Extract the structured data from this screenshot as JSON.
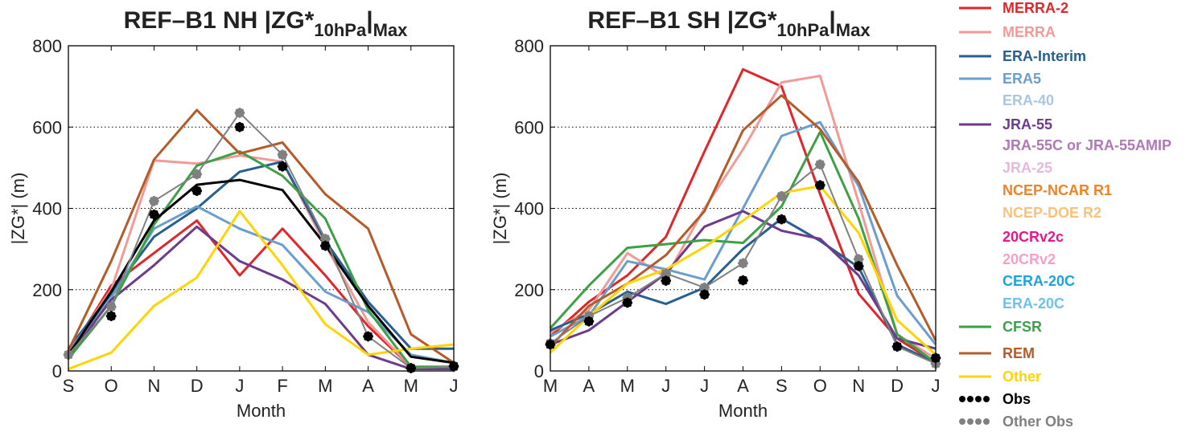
{
  "figure": {
    "colors": {
      "MERRA-2": "#e0262b",
      "MERRA": "#f29a96",
      "ERA-Interim": "#275f8f",
      "ERA5": "#6a9ecd",
      "ERA-40": "#a9c6e2",
      "JRA-55": "#6e3b8c",
      "JRA-55C or JRA-55AMIP": "#b177b6",
      "JRA-25": "#e6b8dc",
      "NCEP-NCAR R1": "#f28123",
      "NCEP-DOE R2": "#fbc07a",
      "20CRv2c": "#e3198d",
      "20CRv2": "#f4a0c8",
      "CERA-20C": "#1aa3dc",
      "ERA-20C": "#6bc4e6",
      "CFSR": "#3da046",
      "REM": "#b55b2a",
      "Other": "#ffd400",
      "Obs": "#000000",
      "Other Obs": "#808080"
    },
    "legend": {
      "entries": [
        {
          "label": "MERRA-2",
          "style": "line"
        },
        {
          "label": "MERRA",
          "style": "line"
        },
        {
          "label": "ERA-Interim",
          "style": "line"
        },
        {
          "label": "ERA5",
          "style": "line"
        },
        {
          "label": "ERA-40",
          "style": "text"
        },
        {
          "label": "JRA-55",
          "style": "line"
        },
        {
          "label": "JRA-55C or JRA-55AMIP",
          "style": "text"
        },
        {
          "label": "JRA-25",
          "style": "text"
        },
        {
          "label": "NCEP-NCAR R1",
          "style": "text"
        },
        {
          "label": "NCEP-DOE R2",
          "style": "text"
        },
        {
          "label": "20CRv2c",
          "style": "text"
        },
        {
          "label": "20CRv2",
          "style": "text"
        },
        {
          "label": "CERA-20C",
          "style": "text"
        },
        {
          "label": "ERA-20C",
          "style": "text"
        },
        {
          "label": "CFSR",
          "style": "line"
        },
        {
          "label": "REM",
          "style": "line"
        },
        {
          "label": "Other",
          "style": "line"
        },
        {
          "label": "Obs",
          "style": "dots"
        },
        {
          "label": "Other Obs",
          "style": "dots"
        }
      ]
    }
  },
  "chart_data": [
    {
      "type": "line",
      "title_main": "REF–B1 NH |ZG*",
      "title_sub": "10hPa",
      "title_bar": "|",
      "title_max": "Max",
      "xlabel": "Month",
      "ylabel": "|ZG*| (m)",
      "categories": [
        "S",
        "O",
        "N",
        "D",
        "J",
        "F",
        "M",
        "A",
        "M",
        "J"
      ],
      "ylim": [
        0,
        800
      ],
      "yticks": [
        0,
        200,
        400,
        600,
        800
      ],
      "grid": "dotted horizontal",
      "series": [
        {
          "name": "MERRA-2",
          "values": [
            40,
            210,
            290,
            370,
            235,
            350,
            235,
            110,
            10,
            10
          ]
        },
        {
          "name": "MERRA",
          "values": [
            45,
            200,
            518,
            510,
            530,
            515,
            310,
            120,
            10,
            10
          ]
        },
        {
          "name": "ERA-Interim",
          "values": [
            55,
            190,
            330,
            400,
            490,
            515,
            320,
            170,
            55,
            55
          ]
        },
        {
          "name": "ERA5",
          "values": [
            50,
            180,
            350,
            405,
            350,
            310,
            195,
            145,
            40,
            20
          ]
        },
        {
          "name": "JRA-55",
          "values": [
            35,
            175,
            260,
            355,
            270,
            225,
            165,
            40,
            5,
            5
          ]
        },
        {
          "name": "CFSR",
          "values": [
            30,
            160,
            360,
            505,
            540,
            480,
            375,
            150,
            10,
            10
          ]
        },
        {
          "name": "REM",
          "values": [
            50,
            270,
            520,
            642,
            535,
            562,
            435,
            350,
            90,
            20
          ]
        },
        {
          "name": "Other",
          "values": [
            5,
            45,
            160,
            230,
            393,
            260,
            115,
            40,
            55,
            65
          ]
        },
        {
          "name": "Obs",
          "values": [
            40,
            195,
            370,
            458,
            470,
            445,
            310,
            160,
            35,
            20
          ]
        }
      ],
      "obs_points": [
        {
          "x": "O",
          "y": 135
        },
        {
          "x": "N",
          "y": 385
        },
        {
          "x": "D",
          "y": 443
        },
        {
          "x": "J",
          "y": 600
        },
        {
          "x": "F",
          "y": 503
        },
        {
          "x": "M",
          "y": 308
        },
        {
          "x": "A",
          "y": 85
        },
        {
          "x": "M",
          "y": 7
        },
        {
          "x": "J",
          "y": 12
        }
      ],
      "other_obs": {
        "values": [
          40,
          158,
          418,
          484,
          635,
          532,
          325,
          85,
          7,
          10
        ]
      }
    },
    {
      "type": "line",
      "title_main": "REF–B1 SH |ZG*",
      "title_sub": "10hPa",
      "title_bar": "|",
      "title_max": "Max",
      "xlabel": "Month",
      "ylabel": "|ZG*| (m)",
      "categories": [
        "M",
        "A",
        "M",
        "J",
        "J",
        "A",
        "S",
        "O",
        "N",
        "D",
        "J"
      ],
      "ylim": [
        0,
        800
      ],
      "yticks": [
        0,
        200,
        400,
        600,
        800
      ],
      "grid": "dotted horizontal",
      "series": [
        {
          "name": "MERRA-2",
          "values": [
            85,
            170,
            235,
            330,
            540,
            742,
            700,
            435,
            190,
            80,
            20
          ]
        },
        {
          "name": "MERRA",
          "values": [
            95,
            150,
            290,
            230,
            400,
            545,
            710,
            726,
            415,
            90,
            30
          ]
        },
        {
          "name": "ERA-Interim",
          "values": [
            100,
            140,
            195,
            165,
            205,
            300,
            375,
            320,
            255,
            65,
            20
          ]
        },
        {
          "name": "ERA5",
          "values": [
            85,
            135,
            270,
            250,
            225,
            400,
            578,
            612,
            455,
            185,
            65
          ]
        },
        {
          "name": "JRA-55",
          "values": [
            65,
            100,
            170,
            240,
            355,
            393,
            345,
            325,
            235,
            80,
            55
          ]
        },
        {
          "name": "CFSR",
          "values": [
            105,
            210,
            303,
            312,
            322,
            315,
            405,
            588,
            375,
            90,
            20
          ]
        },
        {
          "name": "REM",
          "values": [
            60,
            160,
            215,
            285,
            393,
            592,
            678,
            595,
            465,
            260,
            75
          ]
        },
        {
          "name": "Other",
          "values": [
            45,
            135,
            215,
            250,
            305,
            370,
            438,
            455,
            340,
            125,
            40
          ]
        }
      ],
      "obs_points": [
        {
          "x": "M",
          "y": 65
        },
        {
          "x": "A",
          "y": 122
        },
        {
          "x": "M",
          "y": 168
        },
        {
          "x": "J",
          "y": 222
        },
        {
          "x": "J",
          "y": 188
        },
        {
          "x": "A",
          "y": 223
        },
        {
          "x": "S",
          "y": 373
        },
        {
          "x": "O",
          "y": 457
        },
        {
          "x": "N",
          "y": 258
        },
        {
          "x": "D",
          "y": 60
        },
        {
          "x": "J",
          "y": 32
        }
      ],
      "other_obs": {
        "values": [
          68,
          135,
          180,
          240,
          205,
          265,
          430,
          508,
          275,
          60,
          18
        ]
      }
    }
  ]
}
